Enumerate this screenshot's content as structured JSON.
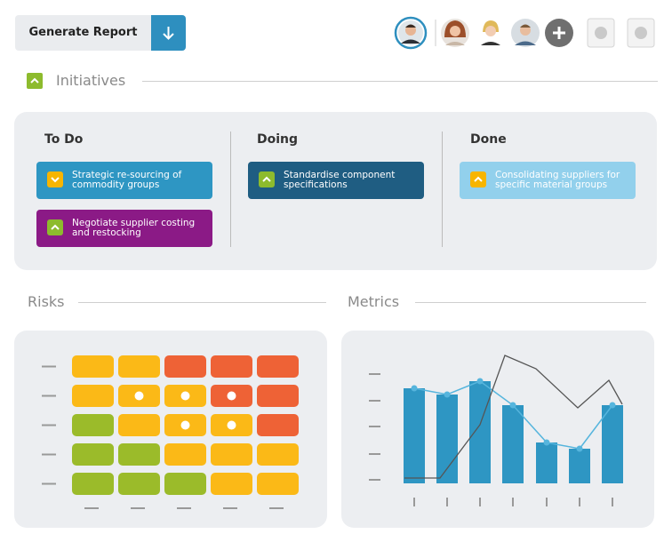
{
  "toolbar": {
    "button": "Generate Report"
  },
  "initiatives": {
    "title": "Initiatives",
    "columns": [
      {
        "title": "To Do",
        "cards": [
          {
            "lines": [
              "Strategic re-sourcing of",
              "commodity groups"
            ]
          },
          {
            "lines": [
              "Negotiate supplier costing",
              "and restocking"
            ]
          }
        ]
      },
      {
        "title": "Doing",
        "cards": [
          {
            "lines": [
              "Standardise component",
              "specifications"
            ]
          }
        ]
      },
      {
        "title": "Done",
        "cards": [
          {
            "lines": [
              "Consolidating suppliers for",
              "specific material groups"
            ]
          }
        ]
      }
    ]
  },
  "risks": {
    "title": "Risks"
  },
  "metrics": {
    "title": "Metrics"
  }
}
